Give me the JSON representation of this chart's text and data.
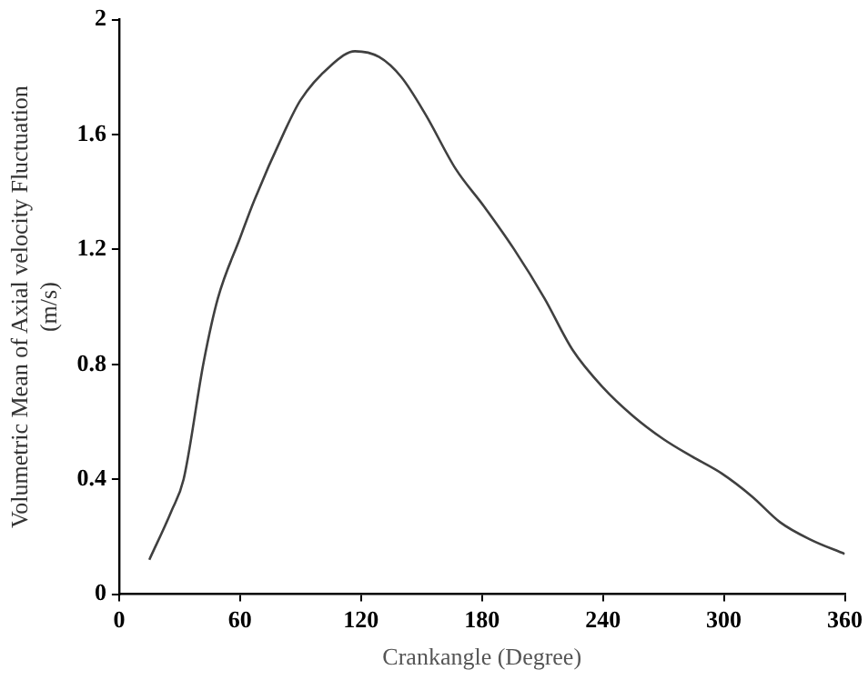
{
  "chart_data": {
    "type": "line",
    "xlabel": "Crankangle (Degree)",
    "ylabel": "Volumetric Mean of Axial velocity Fluctuation\n(m/s)",
    "series": [
      {
        "color": "#404040",
        "x": [
          15,
          26,
          32,
          42,
          49,
          60,
          67,
          82,
          90,
          105,
          117,
          129,
          140,
          152,
          167,
          181,
          196,
          211,
          225,
          240,
          255,
          270,
          284,
          299,
          314,
          328,
          343,
          360
        ],
        "values": [
          0.12,
          0.29,
          0.4,
          0.81,
          1.03,
          1.24,
          1.37,
          1.61,
          1.72,
          1.84,
          1.89,
          1.87,
          1.8,
          1.67,
          1.48,
          1.35,
          1.2,
          1.03,
          0.85,
          0.72,
          0.62,
          0.54,
          0.48,
          0.42,
          0.34,
          0.25,
          0.19,
          0.14
        ]
      }
    ],
    "xlim": [
      0,
      360
    ],
    "xticks": [
      0,
      60,
      120,
      180,
      240,
      300,
      360
    ],
    "ylim": [
      0,
      2
    ],
    "yticks": [
      0,
      0.4,
      0.8,
      1.2,
      1.6,
      2
    ],
    "grid": false,
    "legend": false,
    "marker": "none",
    "line_style": "solid"
  }
}
